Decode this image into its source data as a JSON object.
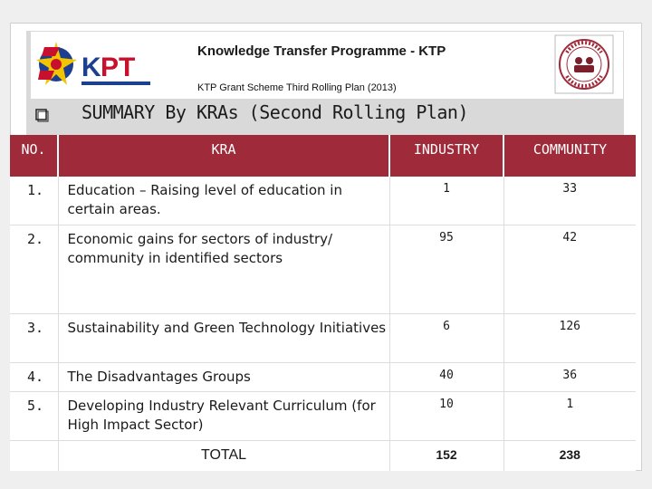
{
  "header": {
    "title": "Knowledge Transfer Programme - KTP",
    "subtitle": "KTP Grant Scheme Third Rolling Plan (2013)",
    "left_logo": {
      "icon": "kpt-logo",
      "text": "KPT",
      "accent": "#c8102e"
    },
    "right_logo": {
      "icon": "ktp-seal-logo"
    }
  },
  "section": {
    "bullet_icon": "hollow-square-bullet-icon",
    "heading": "SUMMARY By KRAs (Second Rolling Plan)"
  },
  "table": {
    "header_color": "#9e2a3a",
    "columns": [
      "NO.",
      "KRA",
      "INDUSTRY",
      "COMMUNITY"
    ],
    "rows": [
      {
        "no": "1.",
        "kra": "Education – Raising level of education in certain areas.",
        "industry": "1",
        "community": "33"
      },
      {
        "no": "2.",
        "kra": "Economic gains for sectors of industry/ community in identified sectors",
        "industry": "95",
        "community": "42"
      },
      {
        "no": "3.",
        "kra": "Sustainability and Green Technology Initiatives",
        "industry": "6",
        "community": "126"
      },
      {
        "no": "4.",
        "kra": "The Disadvantages Groups",
        "industry": "40",
        "community": "36"
      },
      {
        "no": "5.",
        "kra": "Developing Industry Relevant Curriculum (for High Impact Sector)",
        "industry": "10",
        "community": "1"
      }
    ],
    "total": {
      "label": "TOTAL",
      "industry": "152",
      "community": "238"
    }
  }
}
